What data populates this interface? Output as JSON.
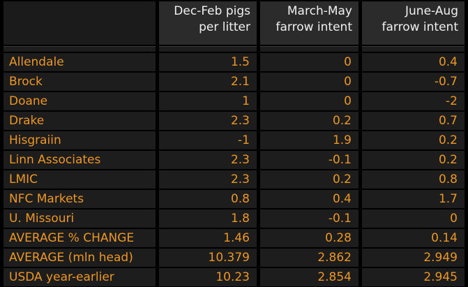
{
  "colors": {
    "background": "#000000",
    "cell_bg": "#1D1D1D",
    "header_bg": "#2B2B2B",
    "corner_bg": "#1B1B1B",
    "accent_orange": "#ED9723",
    "header_text": "#F0F0F0"
  },
  "chart_data": {
    "type": "table",
    "title": "",
    "columns": [
      "Dec-Feb pigs per litter",
      "March-May farrow intent",
      "June-Aug farrow intent"
    ],
    "header_lines": [
      {
        "line1": "Dec-Feb pigs",
        "line2": "per litter"
      },
      {
        "line1": "March-May",
        "line2": "farrow intent"
      },
      {
        "line1": "June-Aug",
        "line2": "farrow intent"
      }
    ],
    "rows": [
      {
        "label": "Allendale",
        "values": [
          "1.5",
          "0",
          "0.4"
        ]
      },
      {
        "label": "Brock",
        "values": [
          "2.1",
          "0",
          "-0.7"
        ]
      },
      {
        "label": "Doane",
        "values": [
          "1",
          "0",
          "-2"
        ]
      },
      {
        "label": "Drake",
        "values": [
          "2.3",
          "0.2",
          "0.7"
        ]
      },
      {
        "label": "Hisgraiin",
        "values": [
          "-1",
          "1.9",
          "0.2"
        ]
      },
      {
        "label": "Linn Associates",
        "values": [
          "2.3",
          "-0.1",
          "0.2"
        ]
      },
      {
        "label": "LMIC",
        "values": [
          "2.3",
          "0.2",
          "0.8"
        ]
      },
      {
        "label": "NFC Markets",
        "values": [
          "0.8",
          "0.4",
          "1.7"
        ]
      },
      {
        "label": "U. Missouri",
        "values": [
          "1.8",
          "-0.1",
          "0"
        ]
      },
      {
        "label": "AVERAGE % CHANGE",
        "values": [
          "1.46",
          "0.28",
          "0.14"
        ]
      },
      {
        "label": "AVERAGE (mln head)",
        "values": [
          "10.379",
          "2.862",
          "2.949"
        ]
      },
      {
        "label": "USDA year-earlier",
        "values": [
          "10.23",
          "2.854",
          "2.945"
        ]
      }
    ]
  }
}
